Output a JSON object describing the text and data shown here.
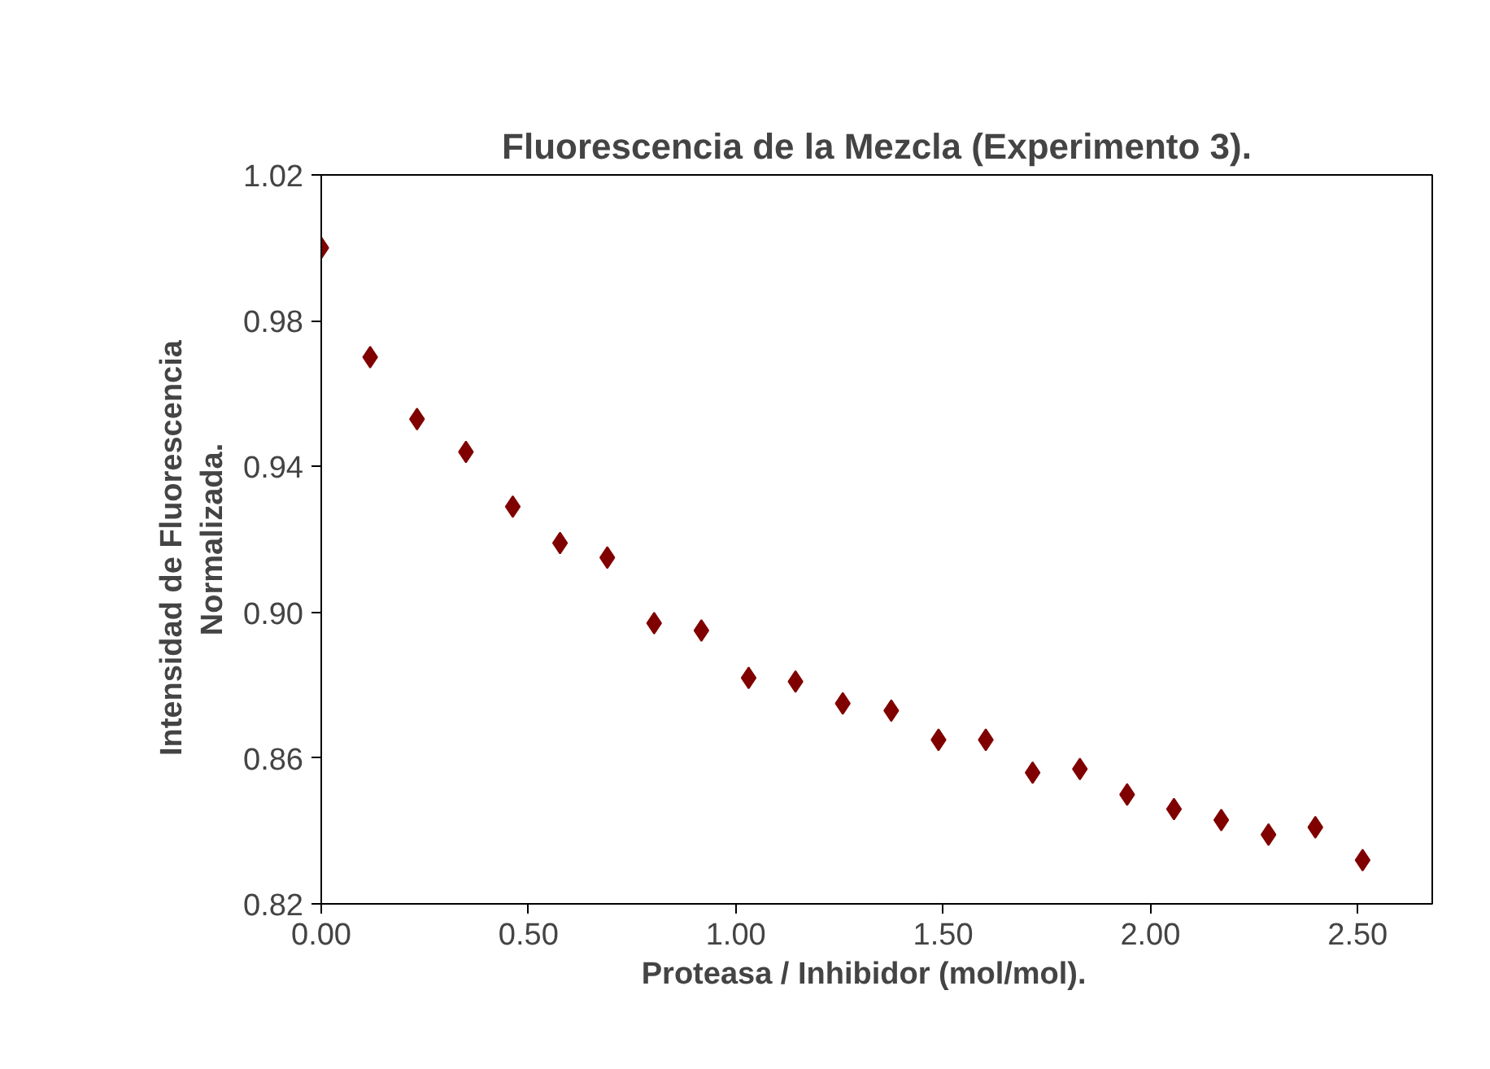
{
  "chart_data": {
    "type": "scatter",
    "title": "Fluorescencia de la Mezcla (Experimento 3).",
    "xlabel": "Proteasa / Inhibidor    (mol/mol).",
    "ylabel": "Intensidad  de  Fluorescencia\nNormalizada.",
    "x": [
      0,
      0.118,
      0.231,
      0.349,
      0.462,
      0.576,
      0.69,
      0.803,
      0.917,
      1.031,
      1.144,
      1.258,
      1.375,
      1.489,
      1.603,
      1.716,
      1.83,
      1.944,
      2.057,
      2.171,
      2.285,
      2.398,
      2.512
    ],
    "series": [
      {
        "color": "#800000",
        "values": [
          1.0,
          0.97,
          0.953,
          0.944,
          0.929,
          0.919,
          0.915,
          0.897,
          0.895,
          0.882,
          0.881,
          0.875,
          0.873,
          0.865,
          0.865,
          0.856,
          0.857,
          0.85,
          0.846,
          0.843,
          0.839,
          0.841,
          0.832
        ]
      }
    ],
    "xlim": [
      0,
      2.68
    ],
    "ylim": [
      0.82,
      1.02
    ],
    "xticks": [
      {
        "value": 0,
        "label": "0.00"
      },
      {
        "value": 0.5,
        "label": "0.50"
      },
      {
        "value": 1,
        "label": "1.00"
      },
      {
        "value": 1.5,
        "label": "1.50"
      },
      {
        "value": 2,
        "label": "2.00"
      },
      {
        "value": 2.5,
        "label": "2.50"
      }
    ],
    "yticks": [
      {
        "value": 0.82,
        "label": "0.82"
      },
      {
        "value": 0.86,
        "label": "0.86"
      },
      {
        "value": 0.9,
        "label": "0.90"
      },
      {
        "value": 0.94,
        "label": "0.94"
      },
      {
        "value": 0.98,
        "label": "0.98"
      },
      {
        "value": 1.02,
        "label": "1.02"
      }
    ],
    "marker": "diamond",
    "grid": false
  }
}
